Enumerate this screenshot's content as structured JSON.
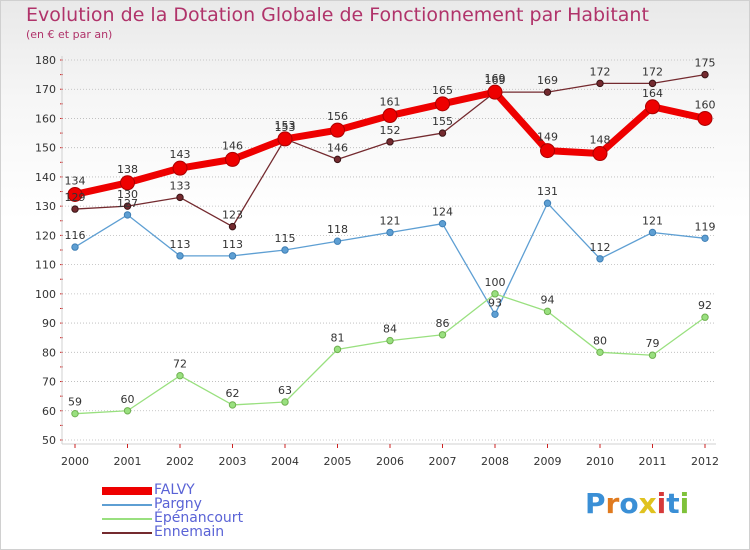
{
  "title": "Evolution de la Dotation Globale de Fonctionnement par Habitant",
  "subtitle": "(en € et par an)",
  "logo_text": "Proxiti",
  "colors": {
    "title": "#b0336a",
    "legend_text": "#5a63d6",
    "axis_text": "#333333"
  },
  "chart_data": {
    "type": "line",
    "title": "Evolution de la Dotation Globale de Fonctionnement par Habitant",
    "subtitle": "(en € et par an)",
    "xlabel": "",
    "ylabel": "",
    "ylim": [
      50,
      180
    ],
    "yticks": [
      50,
      60,
      70,
      80,
      90,
      100,
      110,
      120,
      130,
      140,
      150,
      160,
      170,
      180
    ],
    "grid": "horizontal-dotted",
    "legend_position": "bottom-left",
    "categories": [
      "2000",
      "2001",
      "2002",
      "2003",
      "2004",
      "2005",
      "2006",
      "2007",
      "2008",
      "2009",
      "2010",
      "2011",
      "2012"
    ],
    "series": [
      {
        "name": "FALVY",
        "color": "#ee0000",
        "width": 7,
        "marker": 7,
        "labelColor": "#333333",
        "values": [
          134,
          138,
          143,
          146,
          153,
          156,
          161,
          165,
          169,
          149,
          148,
          164,
          160
        ]
      },
      {
        "name": "Pargny",
        "color": "#5e9fd3",
        "width": 1.3,
        "marker": 3.2,
        "labelColor": "#333333",
        "values": [
          116,
          127,
          113,
          113,
          115,
          118,
          121,
          124,
          93,
          131,
          112,
          121,
          119
        ]
      },
      {
        "name": "Épénancourt",
        "color": "#99e07f",
        "width": 1.3,
        "marker": 3.2,
        "labelColor": "#333333",
        "values": [
          59,
          60,
          72,
          62,
          63,
          81,
          84,
          86,
          100,
          94,
          80,
          79,
          92
        ]
      },
      {
        "name": "Ennemain",
        "color": "#742a2f",
        "width": 1.3,
        "marker": 3.2,
        "labelColor": "#333333",
        "values": [
          129,
          130,
          133,
          123,
          153,
          146,
          152,
          155,
          169,
          169,
          172,
          172,
          175
        ]
      }
    ]
  }
}
